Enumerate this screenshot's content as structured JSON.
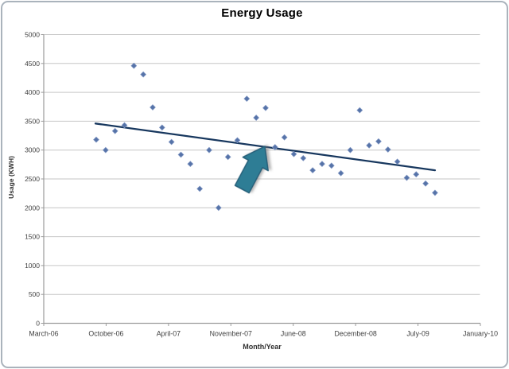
{
  "chart_data": {
    "type": "scatter",
    "title": "Energy Usage",
    "xlabel": "Month/Year",
    "ylabel": "Usage (KWH)",
    "ylim": [
      0,
      5000
    ],
    "y_tick_step": 500,
    "y_tick_labels": [
      "0",
      "500",
      "1000",
      "1500",
      "2000",
      "2500",
      "3000",
      "3500",
      "4000",
      "4500",
      "5000"
    ],
    "x_tick_labels": [
      "March-06",
      "October-06",
      "April-07",
      "November-07",
      "June-08",
      "December-08",
      "July-09",
      "January-10"
    ],
    "grid": "horizontal-only",
    "legend": "none",
    "series": [
      {
        "name": "Usage (KWH)",
        "marker": "diamond",
        "x": [
          "Sep-06",
          "Oct-06",
          "Nov-06",
          "Dec-06",
          "Jan-07",
          "Feb-07",
          "Mar-07",
          "Apr-07",
          "May-07",
          "Jun-07",
          "Jul-07",
          "Aug-07",
          "Sep-07",
          "Oct-07",
          "Nov-07",
          "Dec-07",
          "Jan-08",
          "Feb-08",
          "Mar-08",
          "Apr-08",
          "May-08",
          "Jun-08",
          "Jul-08",
          "Aug-08",
          "Sep-08",
          "Oct-08",
          "Nov-08",
          "Dec-08",
          "Jan-09",
          "Feb-09",
          "Mar-09",
          "Apr-09",
          "May-09",
          "Jun-09",
          "Jul-09",
          "Aug-09",
          "Sep-09"
        ],
        "values": [
          3180,
          3000,
          3330,
          3430,
          4460,
          4310,
          3740,
          3390,
          3140,
          2920,
          2760,
          2330,
          3000,
          2000,
          2880,
          3170,
          3890,
          3560,
          3730,
          3050,
          3220,
          2930,
          2860,
          2650,
          2760,
          2730,
          2600,
          3000,
          3690,
          3080,
          3150,
          3010,
          2800,
          2520,
          2580,
          2420,
          2260
        ]
      }
    ],
    "trendline": {
      "type": "linear",
      "start_value": 3460,
      "end_value": 2650
    },
    "annotation": {
      "shape": "block-arrow",
      "direction": "up-right",
      "points_at": "trend line"
    }
  },
  "colors": {
    "marker": "#5673a8",
    "marker_edge": "#8298c4",
    "trendline": "#17375e",
    "arrow_fill": "#2e7d95",
    "arrow_outline": "#26617a",
    "gridline": "#c6c6c6",
    "axis": "#9b9b9b",
    "tick_text": "#3f3f3f",
    "background": "#ffffff"
  }
}
